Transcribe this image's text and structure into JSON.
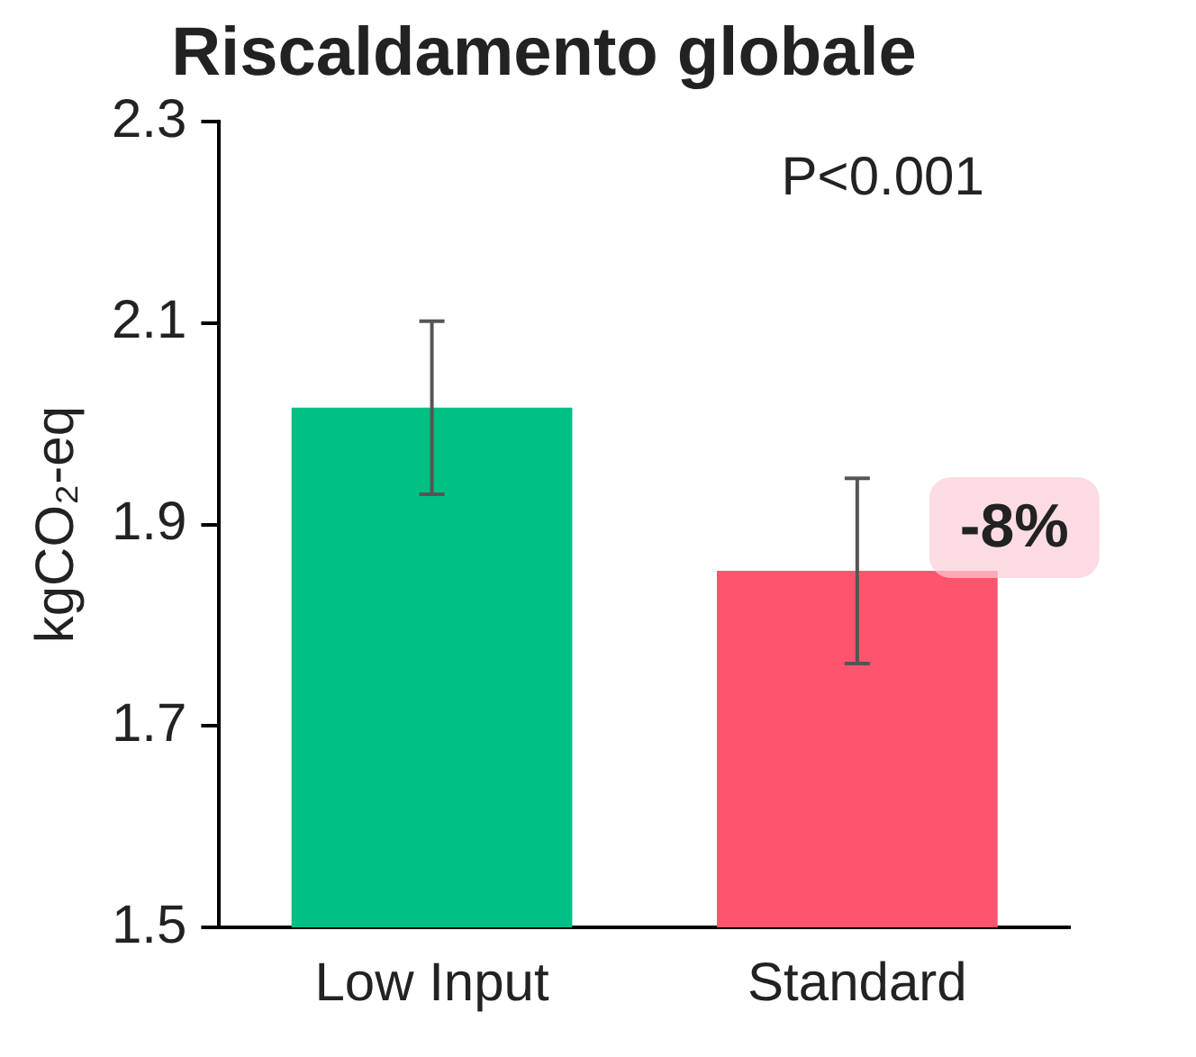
{
  "chart_data": {
    "type": "bar",
    "title": "Riscaldamento globale",
    "ylabel": "kgCO₂-eq",
    "categories": [
      "Low Input",
      "Standard"
    ],
    "values": [
      2.016,
      1.854
    ],
    "colors": [
      "#00c084",
      "#ff546e"
    ],
    "errors": [
      0.086,
      0.092
    ],
    "ylim": [
      1.5,
      2.3
    ],
    "yticks": [
      1.5,
      1.7,
      1.9,
      2.1,
      2.3
    ],
    "grid": false,
    "legend": false,
    "annotations": [
      "P<0.001",
      "-8%"
    ]
  }
}
